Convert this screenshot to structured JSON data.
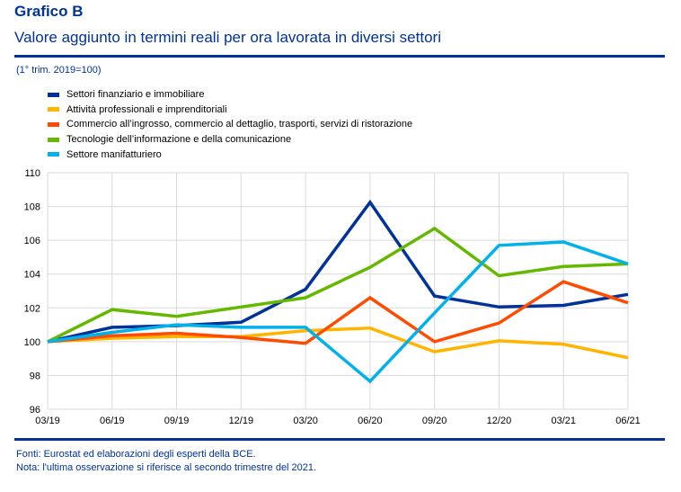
{
  "header": {
    "title": "Grafico B",
    "subtitle": "Valore aggiunto in termini reali per ora lavorata in diversi settori",
    "unit_note": "(1° trim. 2019=100)"
  },
  "footer": {
    "source": "Fonti: Eurostat ed elaborazioni degli esperti della BCE.",
    "note": "Nota: l'ultima osservazione si riferisce al secondo trimestre del 2021."
  },
  "colors": {
    "brand": "#003299",
    "grid": "#d9d9d9"
  },
  "chart_data": {
    "type": "line",
    "title": "Valore aggiunto in termini reali per ora lavorata in diversi settori",
    "xlabel": "",
    "ylabel": "(1° trim. 2019=100)",
    "ylim": [
      96,
      110
    ],
    "yticks": [
      96,
      98,
      100,
      102,
      104,
      106,
      108,
      110
    ],
    "grid": true,
    "legend_position": "top-left",
    "categories": [
      "03/19",
      "06/19",
      "09/19",
      "12/19",
      "03/20",
      "06/20",
      "09/20",
      "12/20",
      "03/21",
      "06/21"
    ],
    "series": [
      {
        "name": "Settori finanziario e immobiliare",
        "color": "#003299",
        "values": [
          100.0,
          100.85,
          100.95,
          101.15,
          103.1,
          108.25,
          102.7,
          102.05,
          102.15,
          102.8
        ]
      },
      {
        "name": "Attività professionali e imprenditoriali",
        "color": "#FFB400",
        "values": [
          100.0,
          100.2,
          100.3,
          100.3,
          100.65,
          100.8,
          99.4,
          100.05,
          99.85,
          99.05
        ]
      },
      {
        "name": "Commercio all’ingrosso, commercio al dettaglio, trasporti, servizi di ristorazione",
        "color": "#FF4B00",
        "values": [
          100.0,
          100.35,
          100.5,
          100.25,
          99.9,
          102.6,
          100.0,
          101.1,
          103.55,
          102.3
        ]
      },
      {
        "name": "Tecnologie dell’informazione e della comunicazione",
        "color": "#65B800",
        "values": [
          100.0,
          101.9,
          101.5,
          102.05,
          102.6,
          104.4,
          106.7,
          103.9,
          104.45,
          104.6
        ]
      },
      {
        "name": "Settore manifatturiero",
        "color": "#00B1EA",
        "values": [
          100.0,
          100.55,
          101.0,
          100.85,
          100.85,
          97.65,
          101.7,
          105.7,
          105.9,
          104.6
        ]
      }
    ]
  }
}
